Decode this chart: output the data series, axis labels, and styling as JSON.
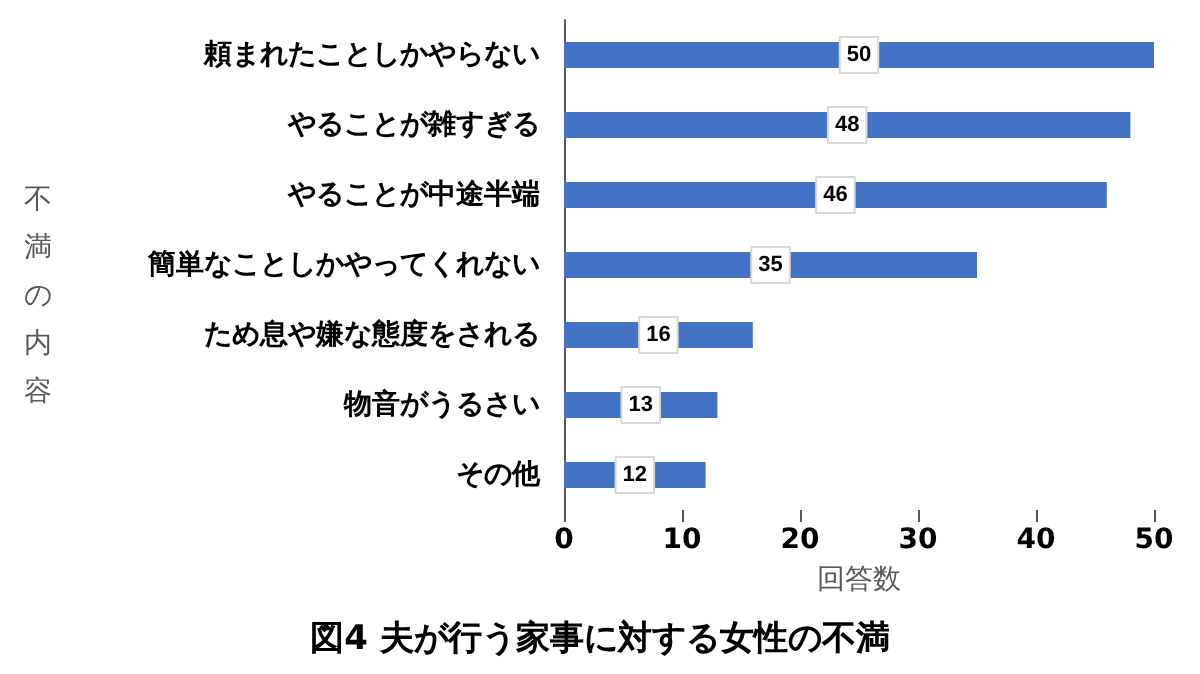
{
  "chart_data": {
    "type": "bar",
    "orientation": "horizontal",
    "title": "図4 夫が行う家事に対する女性の不満",
    "xlabel": "回答数",
    "ylabel": "不満の内容",
    "categories": [
      "頼まれたことしかやらない",
      "やることが雑すぎる",
      "やることが中途半端",
      "簡単なことしかやってくれない",
      "ため息や嫌な態度をされる",
      "物音がうるさい",
      "その他"
    ],
    "values": [
      50,
      48,
      46,
      35,
      16,
      13,
      12
    ],
    "color": "#4472c4",
    "xlim": [
      0,
      50
    ],
    "xticks": [
      0,
      10,
      20,
      30,
      40,
      50
    ],
    "grid": false,
    "data_labels": true
  }
}
